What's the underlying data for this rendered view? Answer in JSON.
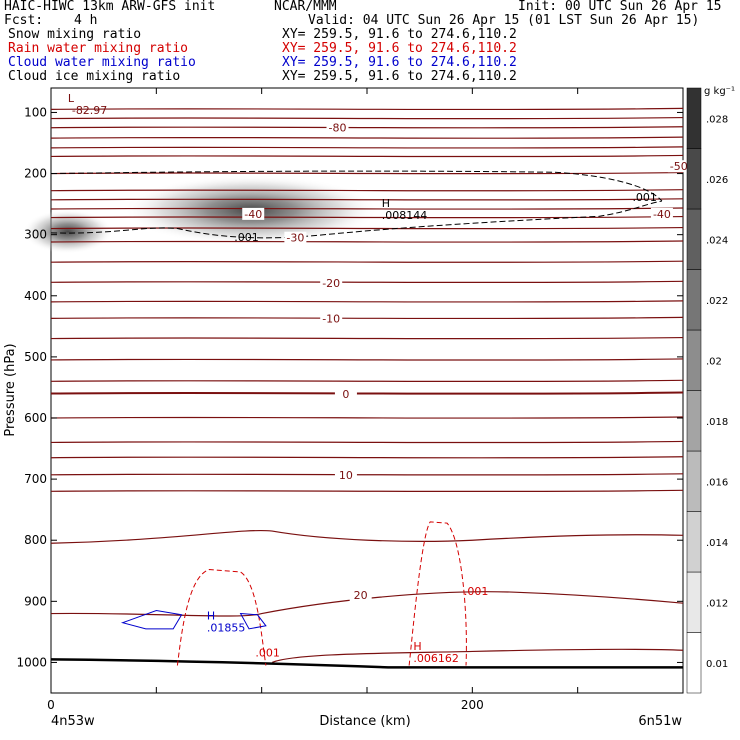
{
  "header": {
    "model": "HAIC-HIWC 13km ARW-GFS init",
    "org": "NCAR/MMM",
    "init": "Init: 00 UTC Sun 26 Apr 15",
    "fcst_label": "Fcst:",
    "fcst_value": "4 h",
    "valid": "Valid: 04 UTC Sun 26 Apr 15 (01 LST Sun 26 Apr 15)",
    "fields": [
      {
        "name": "Snow mixing ratio",
        "xy": "XY= 259.5, 91.6 to 274.6,110.2",
        "color": "#000000"
      },
      {
        "name": "Rain water mixing ratio",
        "xy": "XY= 259.5, 91.6 to 274.6,110.2",
        "color": "#d40000"
      },
      {
        "name": "Cloud water mixing ratio",
        "xy": "XY= 259.5, 91.6 to 274.6,110.2",
        "color": "#0000cc"
      },
      {
        "name": "Cloud ice mixing ratio",
        "xy": "XY= 259.5, 91.6 to 274.6,110.2",
        "color": "#000000"
      }
    ]
  },
  "chart_data": {
    "type": "cross-section contour",
    "x_axis": {
      "label": "Distance (km)",
      "range": [
        0,
        300
      ],
      "ticks": [
        0,
        50,
        100,
        150,
        200,
        250,
        300
      ],
      "tick_labels": [
        {
          "value": 0,
          "label": "0"
        },
        {
          "value": 200,
          "label": "200"
        }
      ],
      "left_endpoint": "4n53w",
      "right_endpoint": "6n51w"
    },
    "y_axis": {
      "label": "Pressure (hPa)",
      "range": [
        1050,
        60
      ],
      "ticks": [
        100,
        200,
        300,
        400,
        500,
        600,
        700,
        800,
        900,
        1000
      ]
    },
    "colorbar": {
      "unit": "g kg⁻¹",
      "levels": [
        "0.01",
        ".012",
        ".014",
        ".016",
        ".018",
        ".02",
        ".022",
        ".024",
        ".026",
        ".028"
      ]
    },
    "temperature_contour_labels": [
      {
        "x": 136,
        "p": 125,
        "label": "-80"
      },
      {
        "x": 298,
        "p": 188,
        "label": "-50"
      },
      {
        "x": 96,
        "p": 266,
        "label": "-40"
      },
      {
        "x": 290,
        "p": 266,
        "label": "-40"
      },
      {
        "x": 116,
        "p": 305,
        "label": "-30"
      },
      {
        "x": 133,
        "p": 379,
        "label": "-20"
      },
      {
        "x": 133,
        "p": 437,
        "label": "-10"
      },
      {
        "x": 140,
        "p": 561,
        "label": "0"
      },
      {
        "x": 140,
        "p": 693,
        "label": "10"
      },
      {
        "x": 147,
        "p": 890,
        "label": "20"
      }
    ],
    "annotations": [
      {
        "type": "low",
        "label": "L",
        "value": "-82.97",
        "x": 8,
        "p": 83
      },
      {
        "type": "high",
        "label": "H",
        "value": ".008144",
        "x": 157,
        "p": 255,
        "series": "cloud ice"
      },
      {
        "type": "high",
        "label": "H",
        "value": ".01855",
        "x": 74,
        "p": 930,
        "series": "cloud water"
      },
      {
        "type": "high",
        "label": "H",
        "value": ".006162",
        "x": 172,
        "p": 980,
        "series": "rain water"
      },
      {
        "type": "contour",
        "value": ".001",
        "x": 87,
        "p": 310,
        "series": "cloud ice"
      },
      {
        "type": "contour",
        "value": ".001",
        "x": 276,
        "p": 245,
        "series": "cloud ice"
      },
      {
        "type": "contour",
        "value": ".001",
        "x": 97,
        "p": 990,
        "series": "rain water"
      },
      {
        "type": "contour",
        "value": ".001",
        "x": 196,
        "p": 890,
        "series": "rain water"
      }
    ],
    "snow_max_region": {
      "x_range": [
        0,
        110
      ],
      "p_range": [
        215,
        330
      ],
      "peak_x": 95,
      "peak_p": 260,
      "peak_value": 0.028
    }
  }
}
